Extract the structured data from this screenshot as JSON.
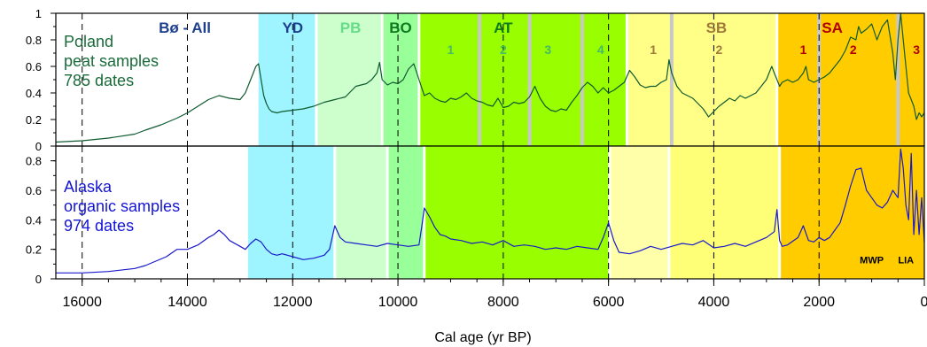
{
  "chart_data": {
    "type": "line",
    "xlabel": "Cal age (yr BP)",
    "x_ticks": [
      "16000",
      "14000",
      "12000",
      "10000",
      "8000",
      "6000",
      "4000",
      "2000",
      "0"
    ],
    "x_tick_values": [
      16000,
      14000,
      12000,
      10000,
      8000,
      6000,
      4000,
      2000,
      0
    ],
    "xlim": [
      16500,
      0
    ],
    "dashed_lines": [
      16000,
      14000,
      12000,
      10000,
      8000,
      6000,
      4000,
      2000
    ],
    "panels": [
      {
        "id": "poland",
        "text_lines": [
          "Poland",
          "peat samples",
          "785 dates"
        ],
        "text_color": "#1a6b3a",
        "line_color": "#0f5a30",
        "ylim": [
          0,
          1
        ],
        "y_ticks": [
          "0",
          "0.2",
          "0.4",
          "0.6",
          "0.8",
          "1"
        ],
        "y_tick_values": [
          0,
          0.2,
          0.4,
          0.6,
          0.8,
          1
        ],
        "periods": [
          {
            "label": "YD",
            "start": 12650,
            "end": 11550,
            "color": "#9ff5ff",
            "text_color": "#1e3f8f"
          },
          {
            "label": "PB",
            "start": 11550,
            "end": 10300,
            "color": "#ccffcc",
            "text_color": "#66dd88"
          },
          {
            "label": "BO",
            "start": 10300,
            "end": 9600,
            "color": "#99ff99",
            "text_color": "#0f7a1f"
          },
          {
            "label": "AT",
            "start": 9600,
            "end": 5650,
            "color": "#99ff00",
            "text_color": "#0f7a1f"
          },
          {
            "label": "SB",
            "start": 5650,
            "end": 2800,
            "color": "#ffff88",
            "text_color": "#a07a3a"
          },
          {
            "label": "SA",
            "start": 2800,
            "end": 0,
            "color": "#ffcc00",
            "text_color": "#b00000"
          }
        ],
        "period_label_positions": [
          12000,
          10900,
          9950,
          8000,
          3950,
          1750
        ],
        "unshaded_label": {
          "label": "Bø - All",
          "x": 14050,
          "text_color": "#1e3f8f"
        },
        "gray_lines": [
          8450,
          7500,
          6500,
          4800,
          2000,
          500
        ],
        "sub_labels": [
          {
            "label": "1",
            "x": 9000,
            "color": "#44bb66"
          },
          {
            "label": "2",
            "x": 8000,
            "color": "#44bb66"
          },
          {
            "label": "3",
            "x": 7150,
            "color": "#44bb66"
          },
          {
            "label": "4",
            "x": 6150,
            "color": "#44bb66"
          },
          {
            "label": "1",
            "x": 5150,
            "color": "#a07a3a"
          },
          {
            "label": "2",
            "x": 3900,
            "color": "#a07a3a"
          },
          {
            "label": "1",
            "x": 2300,
            "color": "#b00000"
          },
          {
            "label": "2",
            "x": 1350,
            "color": "#b00000"
          },
          {
            "label": "3",
            "x": 150,
            "color": "#b00000"
          }
        ],
        "series": [
          {
            "x": [
              16500,
              16000,
              15500,
              15000,
              14800,
              14500,
              14200,
              14000,
              13800,
              13600,
              13400,
              13200,
              13000,
              12900,
              12800,
              12700,
              12650,
              12600,
              12550,
              12500,
              12450,
              12400,
              12300,
              12200,
              12000,
              11800,
              11600,
              11400,
              11200,
              11000,
              10800,
              10600,
              10500,
              10400,
              10350,
              10300,
              10200,
              10100,
              10000,
              9900,
              9800,
              9700,
              9600,
              9500,
              9400,
              9300,
              9200,
              9100,
              9000,
              8900,
              8800,
              8700,
              8600,
              8500,
              8400,
              8300,
              8200,
              8100,
              8000,
              7900,
              7800,
              7700,
              7600,
              7500,
              7400,
              7300,
              7200,
              7100,
              7000,
              6900,
              6800,
              6700,
              6600,
              6500,
              6400,
              6300,
              6200,
              6100,
              6000,
              5900,
              5800,
              5700,
              5600,
              5500,
              5400,
              5300,
              5200,
              5100,
              5000,
              4900,
              4850,
              4800,
              4700,
              4600,
              4500,
              4400,
              4300,
              4200,
              4100,
              4000,
              3900,
              3800,
              3700,
              3600,
              3500,
              3400,
              3300,
              3200,
              3100,
              3000,
              2900,
              2850,
              2800,
              2750,
              2700,
              2600,
              2500,
              2400,
              2300,
              2250,
              2200,
              2100,
              2000,
              1900,
              1800,
              1700,
              1600,
              1500,
              1400,
              1300,
              1250,
              1200,
              1100,
              1000,
              900,
              800,
              700,
              600,
              550,
              500,
              450,
              400,
              350,
              300,
              250,
              200,
              150,
              100,
              50,
              0
            ],
            "y": [
              0.03,
              0.04,
              0.06,
              0.09,
              0.12,
              0.16,
              0.21,
              0.25,
              0.3,
              0.35,
              0.38,
              0.36,
              0.35,
              0.4,
              0.5,
              0.6,
              0.62,
              0.5,
              0.38,
              0.32,
              0.28,
              0.26,
              0.25,
              0.26,
              0.27,
              0.28,
              0.3,
              0.33,
              0.35,
              0.37,
              0.45,
              0.47,
              0.5,
              0.55,
              0.63,
              0.5,
              0.46,
              0.48,
              0.47,
              0.5,
              0.58,
              0.62,
              0.5,
              0.38,
              0.4,
              0.36,
              0.34,
              0.33,
              0.36,
              0.35,
              0.37,
              0.4,
              0.36,
              0.34,
              0.33,
              0.31,
              0.3,
              0.36,
              0.29,
              0.3,
              0.33,
              0.32,
              0.33,
              0.37,
              0.45,
              0.36,
              0.3,
              0.27,
              0.26,
              0.28,
              0.27,
              0.33,
              0.38,
              0.44,
              0.48,
              0.45,
              0.4,
              0.44,
              0.4,
              0.42,
              0.45,
              0.48,
              0.57,
              0.52,
              0.46,
              0.44,
              0.45,
              0.45,
              0.48,
              0.5,
              0.65,
              0.55,
              0.45,
              0.4,
              0.38,
              0.36,
              0.32,
              0.28,
              0.22,
              0.26,
              0.3,
              0.33,
              0.36,
              0.34,
              0.38,
              0.36,
              0.38,
              0.4,
              0.45,
              0.5,
              0.6,
              0.55,
              0.5,
              0.45,
              0.48,
              0.5,
              0.48,
              0.5,
              0.55,
              0.6,
              0.5,
              0.48,
              0.5,
              0.52,
              0.55,
              0.6,
              0.65,
              0.72,
              0.82,
              0.8,
              0.9,
              0.85,
              0.88,
              0.92,
              0.8,
              0.9,
              0.95,
              0.7,
              0.5,
              0.8,
              1.0,
              0.8,
              0.6,
              0.4,
              0.35,
              0.3,
              0.2,
              0.25,
              0.22,
              0.25
            ]
          }
        ]
      },
      {
        "id": "alaska",
        "text_lines": [
          "Alaska",
          "organic samples",
          "974 dates"
        ],
        "text_color": "#1515d6",
        "line_color": "#1a1acc",
        "ylim": [
          0,
          0.9
        ],
        "y_ticks": [
          "0",
          "0.2",
          "0.4",
          "0.6",
          "0.8"
        ],
        "y_tick_values": [
          0,
          0.2,
          0.4,
          0.6,
          0.8
        ],
        "periods": [
          {
            "start": 12850,
            "end": 11200,
            "color": "#9ff5ff"
          },
          {
            "start": 11200,
            "end": 10200,
            "color": "#ccffcc"
          },
          {
            "start": 10200,
            "end": 9500,
            "color": "#99ff99"
          },
          {
            "start": 9500,
            "end": 5980,
            "color": "#99ff00"
          },
          {
            "start": 5980,
            "end": 4850,
            "color": "#ffffaa"
          },
          {
            "start": 4850,
            "end": 2750,
            "color": "#ffff77"
          },
          {
            "start": 2750,
            "end": 0,
            "color": "#ffcc00"
          }
        ],
        "annotations": [
          {
            "label": "MWP",
            "x": 1000,
            "y": 0.13
          },
          {
            "label": "LIA",
            "x": 350,
            "y": 0.13
          }
        ],
        "series": [
          {
            "x": [
              16500,
              16000,
              15500,
              15000,
              14800,
              14600,
              14400,
              14200,
              14000,
              13800,
              13600,
              13500,
              13400,
              13300,
              13200,
              13000,
              12900,
              12800,
              12700,
              12600,
              12500,
              12400,
              12300,
              12200,
              12000,
              11800,
              11600,
              11400,
              11300,
              11200,
              11100,
              11000,
              10800,
              10600,
              10400,
              10200,
              10000,
              9800,
              9600,
              9550,
              9500,
              9400,
              9300,
              9200,
              9100,
              9000,
              8800,
              8600,
              8400,
              8200,
              8000,
              7800,
              7600,
              7400,
              7200,
              7000,
              6800,
              6600,
              6400,
              6200,
              6100,
              6000,
              5900,
              5800,
              5600,
              5400,
              5200,
              5000,
              4800,
              4600,
              4400,
              4200,
              4000,
              3800,
              3600,
              3400,
              3200,
              3000,
              2850,
              2800,
              2750,
              2700,
              2600,
              2400,
              2300,
              2200,
              2100,
              2000,
              1900,
              1800,
              1700,
              1600,
              1500,
              1400,
              1300,
              1200,
              1100,
              1000,
              900,
              800,
              700,
              600,
              500,
              450,
              400,
              350,
              300,
              250,
              200,
              150,
              100,
              50,
              0
            ],
            "y": [
              0.04,
              0.04,
              0.05,
              0.07,
              0.09,
              0.12,
              0.15,
              0.2,
              0.2,
              0.23,
              0.28,
              0.3,
              0.33,
              0.3,
              0.26,
              0.22,
              0.2,
              0.24,
              0.27,
              0.25,
              0.2,
              0.17,
              0.16,
              0.17,
              0.15,
              0.13,
              0.14,
              0.16,
              0.2,
              0.36,
              0.28,
              0.25,
              0.24,
              0.23,
              0.22,
              0.24,
              0.23,
              0.22,
              0.23,
              0.35,
              0.48,
              0.42,
              0.35,
              0.3,
              0.29,
              0.27,
              0.26,
              0.24,
              0.25,
              0.23,
              0.26,
              0.22,
              0.23,
              0.22,
              0.2,
              0.21,
              0.2,
              0.22,
              0.21,
              0.2,
              0.28,
              0.38,
              0.26,
              0.18,
              0.17,
              0.19,
              0.22,
              0.2,
              0.22,
              0.24,
              0.23,
              0.26,
              0.21,
              0.22,
              0.24,
              0.22,
              0.25,
              0.28,
              0.32,
              0.47,
              0.26,
              0.22,
              0.23,
              0.28,
              0.36,
              0.26,
              0.25,
              0.28,
              0.26,
              0.28,
              0.33,
              0.38,
              0.5,
              0.63,
              0.74,
              0.75,
              0.6,
              0.55,
              0.5,
              0.48,
              0.52,
              0.6,
              0.55,
              0.88,
              0.75,
              0.5,
              0.4,
              0.85,
              0.3,
              0.6,
              0.3,
              0.55,
              0.25
            ]
          }
        ]
      }
    ]
  }
}
